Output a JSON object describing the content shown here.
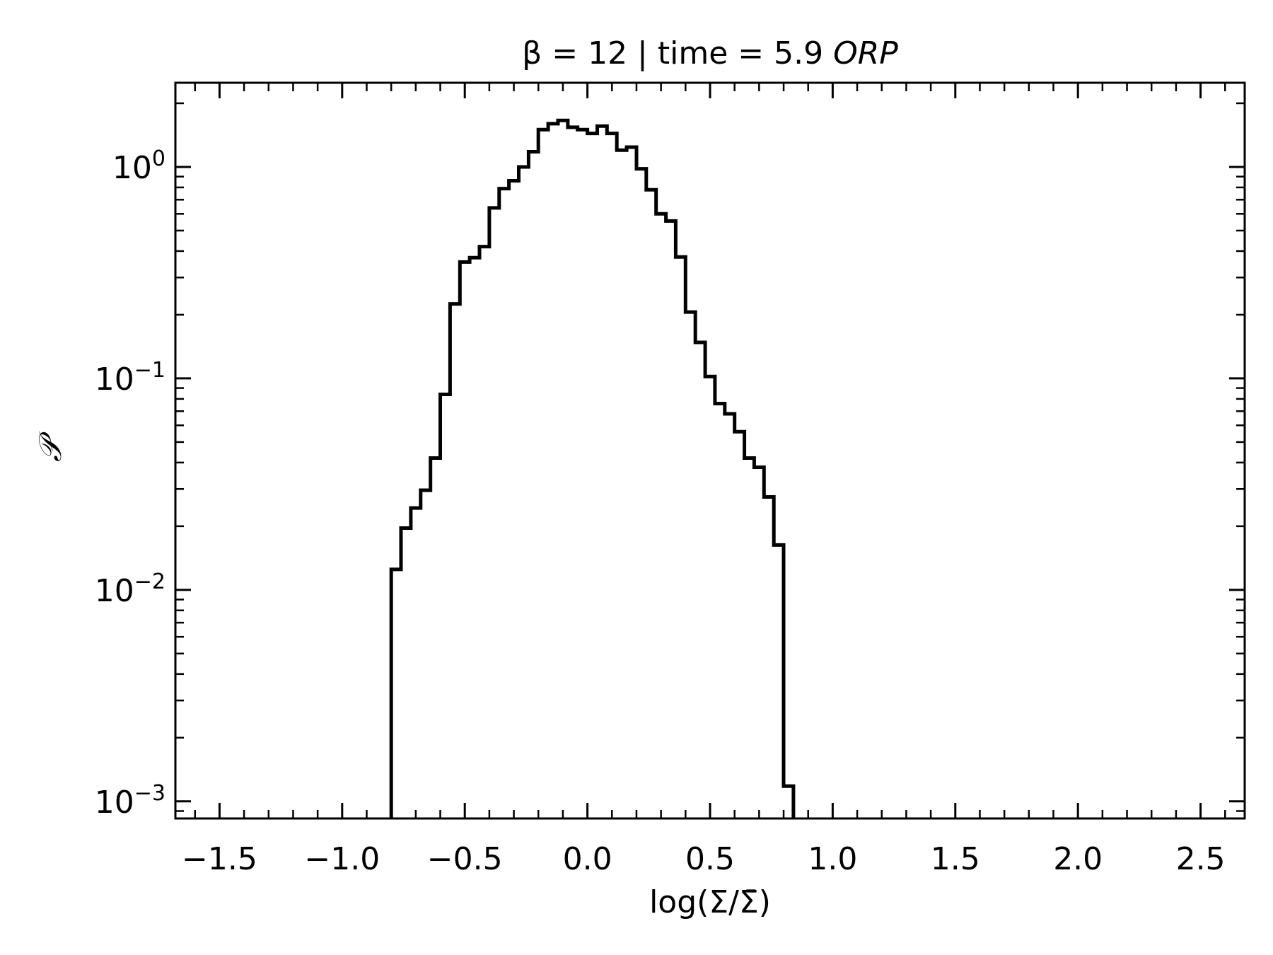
{
  "chart_data": {
    "type": "histogram",
    "title": "β = 12 | time = 5.9 ORP",
    "title_parts": {
      "prefix": "β = 12 | time = 5.9 ",
      "italic": "ORP"
    },
    "xlabel": "log(Σ/Σ̄)",
    "ylabel": "𝒫",
    "xlim": [
      -1.68,
      2.68
    ],
    "ylim": [
      0.00083,
      2.5
    ],
    "yscale": "log",
    "grid": false,
    "legend": "none",
    "line_color": "#000000",
    "x_ticks": [
      {
        "value": -1.5,
        "label": "−1.5"
      },
      {
        "value": -1.0,
        "label": "−1.0"
      },
      {
        "value": -0.5,
        "label": "−0.5"
      },
      {
        "value": 0.0,
        "label": "0.0"
      },
      {
        "value": 0.5,
        "label": "0.5"
      },
      {
        "value": 1.0,
        "label": "1.0"
      },
      {
        "value": 1.5,
        "label": "1.5"
      },
      {
        "value": 2.0,
        "label": "2.0"
      },
      {
        "value": 2.5,
        "label": "2.5"
      }
    ],
    "y_ticks": [
      {
        "value": 0.001,
        "base": "10",
        "exp": "−3"
      },
      {
        "value": 0.01,
        "base": "10",
        "exp": "−2"
      },
      {
        "value": 0.1,
        "base": "10",
        "exp": "−1"
      },
      {
        "value": 1,
        "base": "10",
        "exp": "0"
      }
    ],
    "bins": {
      "start": -0.8,
      "width": 0.04,
      "values": [
        0.0125,
        0.0196,
        0.0244,
        0.0296,
        0.042,
        0.084,
        0.225,
        0.355,
        0.372,
        0.42,
        0.64,
        0.79,
        0.86,
        1.0,
        1.18,
        1.5,
        1.6,
        1.66,
        1.54,
        1.5,
        1.44,
        1.56,
        1.44,
        1.2,
        1.24,
        0.98,
        0.78,
        0.6,
        0.555,
        0.375,
        0.206,
        0.148,
        0.102,
        0.076,
        0.068,
        0.056,
        0.042,
        0.038,
        0.0275,
        0.0163,
        0.00118
      ]
    }
  }
}
